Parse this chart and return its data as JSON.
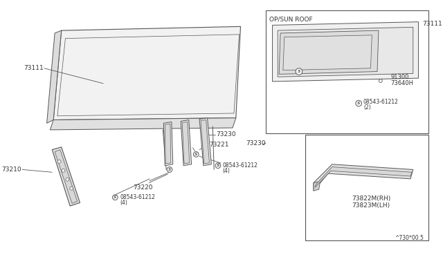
{
  "bg_color": "#ffffff",
  "border_color": "#555555",
  "line_color": "#555555",
  "title": "^730*00.5",
  "main_parts": {
    "roof_panel_label": "73111",
    "front_rail_label": "73210",
    "rail_center_front_label": "73220",
    "rail_center_rear_label": "73221",
    "rear_rail_label": "73230",
    "bolt_main_label": "08543-61212",
    "bolt_main_qty": "(4)",
    "bolt_center_label": "08543-61212",
    "bolt_center_qty": "(4)"
  },
  "inset1": {
    "title": "OP/SUN ROOF",
    "roof_label": "73111",
    "bracket_label": "91300",
    "clip_label": "73640H",
    "bolt_label": "08543-61212",
    "bolt_qty": "(2)"
  },
  "inset2": {
    "rail_label1": "73822M(RH)",
    "rail_label2": "73823M(LH)"
  }
}
